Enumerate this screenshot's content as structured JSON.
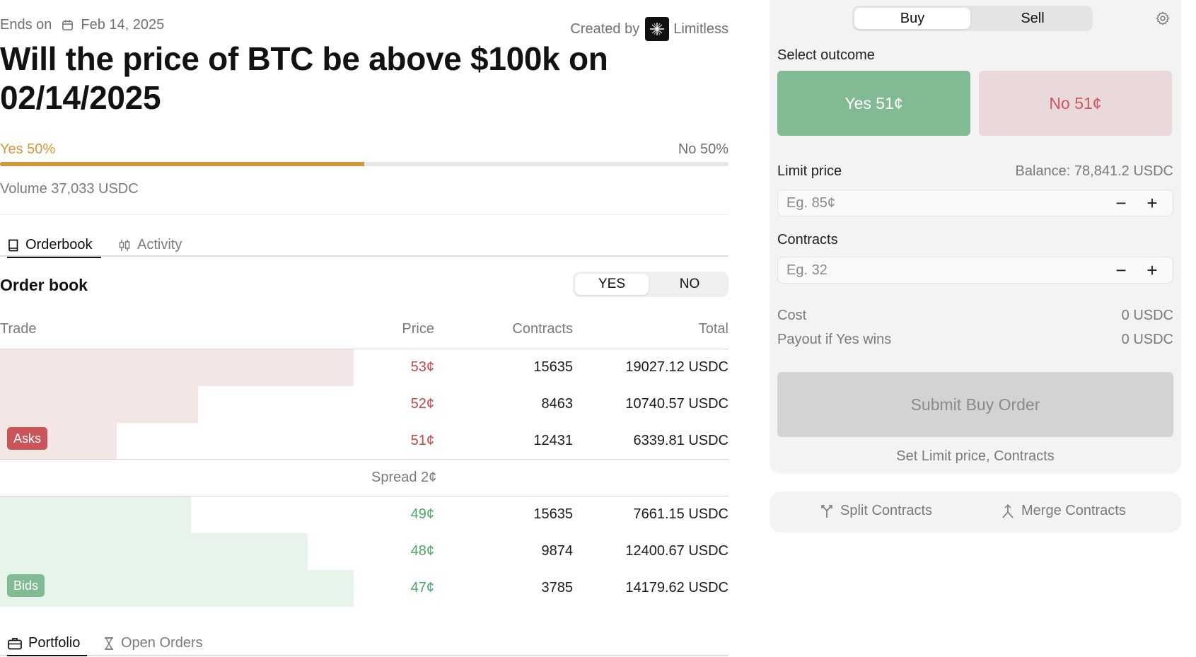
{
  "market": {
    "ends_label": "Ends on",
    "end_date": "Feb 14, 2025",
    "created_by_label": "Created by",
    "creator": "Limitless",
    "title": "Will the price of BTC be above $100k on 02/14/2025",
    "yes_label": "Yes 50%",
    "no_label": "No 50%",
    "yes_probability": 0.5,
    "volume": "Volume 37,033 USDC"
  },
  "tabs": [
    {
      "label": "Orderbook",
      "icon": "book-icon",
      "active": true
    },
    {
      "label": "Activity",
      "icon": "candlestick-icon",
      "active": false
    }
  ],
  "orderbook": {
    "title": "Order book",
    "toggle": {
      "yes": "YES",
      "no": "NO",
      "active": "YES"
    },
    "headers": {
      "trade": "Trade",
      "price": "Price",
      "contracts": "Contracts",
      "total": "Total"
    },
    "asks_badge": "Asks",
    "bids_badge": "Bids",
    "spread": "Spread 2¢",
    "asks": [
      {
        "price": "53¢",
        "contracts": "15635",
        "total": "19027.12 USDC",
        "depth": 1.0
      },
      {
        "price": "52¢",
        "contracts": "8463",
        "total": "10740.57 USDC",
        "depth": 0.56
      },
      {
        "price": "51¢",
        "contracts": "12431",
        "total": "6339.81 USDC",
        "depth": 0.33
      }
    ],
    "bids": [
      {
        "price": "49¢",
        "contracts": "15635",
        "total": "7661.15 USDC",
        "depth": 0.54
      },
      {
        "price": "48¢",
        "contracts": "9874",
        "total": "12400.67 USDC",
        "depth": 0.87
      },
      {
        "price": "47¢",
        "contracts": "3785",
        "total": "14179.62 USDC",
        "depth": 1.0
      }
    ]
  },
  "bottom_tabs": [
    {
      "label": "Portfolio",
      "icon": "briefcase-icon",
      "active": true
    },
    {
      "label": "Open Orders",
      "icon": "hourglass-icon",
      "active": false
    }
  ],
  "trade_panel": {
    "buy_label": "Buy",
    "sell_label": "Sell",
    "active_side": "Buy",
    "select_outcome_label": "Select outcome",
    "yes_button": "Yes 51¢",
    "no_button": "No 51¢",
    "limit_price_label": "Limit price",
    "balance": "Balance: 78,841.2 USDC",
    "limit_price_placeholder": "Eg. 85¢",
    "limit_price_value": "",
    "contracts_label": "Contracts",
    "contracts_placeholder": "Eg. 32",
    "contracts_value": "",
    "cost_label": "Cost",
    "cost_value": "0 USDC",
    "payout_label": "Payout if Yes wins",
    "payout_value": "0 USDC",
    "submit_label": "Submit Buy Order",
    "hint": "Set Limit price, Contracts"
  },
  "contracts_actions": {
    "split_label": "Split Contracts",
    "merge_label": "Merge Contracts"
  },
  "colors": {
    "yes_accent": "#d6963a",
    "ask_red": "#c44848",
    "bid_green": "#4ea56a",
    "yes_button_bg": "#82ba93",
    "no_button_bg": "#ead9db"
  }
}
